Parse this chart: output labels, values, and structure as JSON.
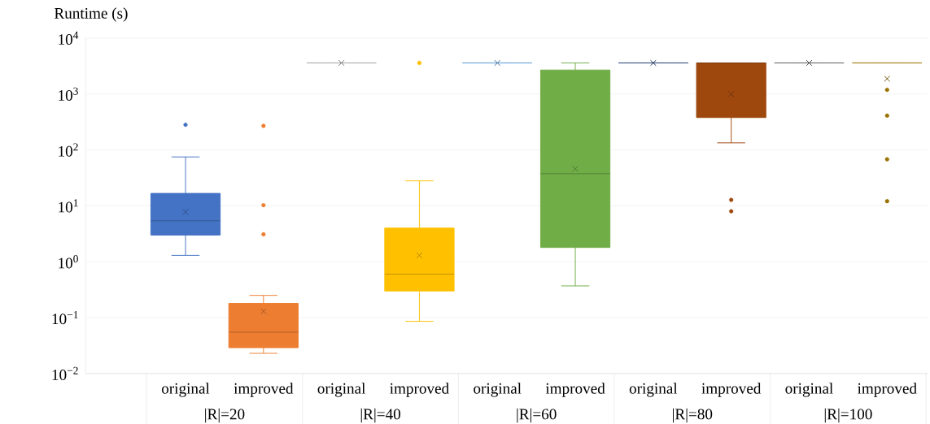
{
  "chart_data": {
    "type": "box",
    "ylabel": "Runtime (s)",
    "categories": [
      "original",
      "improved",
      "original",
      "improved",
      "original",
      "improved",
      "original",
      "improved",
      "original",
      "improved"
    ],
    "boxes": [
      {
        "low": 1.3,
        "q1": 3.0,
        "median": 5.4,
        "q3": 16.7,
        "high": 75,
        "mean": 7.8,
        "outliers": [
          282
        ]
      },
      {
        "low": 0.023,
        "q1": 0.029,
        "median": 0.055,
        "q3": 0.18,
        "high": 0.25,
        "mean": 0.13,
        "outliers": [
          270,
          10.3,
          3.1
        ]
      },
      {
        "low": 3600,
        "q1": 3600,
        "median": 3600,
        "q3": 3600,
        "high": 3600,
        "mean": 3600
      },
      {
        "low": 0.086,
        "q1": 0.3,
        "median": 0.6,
        "q3": 4.0,
        "high": 28,
        "mean": 1.3,
        "outliers": [
          3600
        ]
      },
      {
        "low": 3600,
        "q1": 3600,
        "median": 3600,
        "q3": 3600,
        "high": 3600,
        "mean": 3600
      },
      {
        "low": 0.37,
        "q1": 1.8,
        "median": 37.6,
        "q3": 2690,
        "high": 3600,
        "mean": 46
      },
      {
        "low": 3600,
        "q1": 3600,
        "median": 3600,
        "q3": 3600,
        "high": 3600,
        "mean": 3600
      },
      {
        "low": 134,
        "q1": 380,
        "median": 3600,
        "q3": 3600,
        "high": 3600,
        "mean": 1000,
        "outliers": [
          12.8,
          8.0
        ]
      },
      {
        "low": 3600,
        "q1": 3600,
        "median": 3600,
        "q3": 3600,
        "high": 3600,
        "mean": 3600
      },
      {
        "low": 3600,
        "q1": 3600,
        "median": 3600,
        "q3": 3600,
        "high": 3600,
        "mean": 1880,
        "outliers": [
          1190,
          411,
          68,
          12.1
        ]
      }
    ],
    "colors": [
      "#4472c4",
      "#ed7d31",
      "#a5a5a5",
      "#ffc000",
      "#5b9bd5",
      "#70ad47",
      "#264478",
      "#9e480e",
      "#636363",
      "#997300"
    ],
    "log": "y",
    "ylim": [
      0.01,
      10000
    ],
    "yticks": [
      {
        "value": 0.01,
        "label": "10$^{−2}$"
      },
      {
        "value": 0.1,
        "label": "10$^{−1}$"
      },
      {
        "value": 1,
        "label": "10$^{0}$"
      },
      {
        "value": 10,
        "label": "10$^{1}$"
      },
      {
        "value": 100,
        "label": "10$^{2}$"
      },
      {
        "value": 1000,
        "label": "10$^{3}$"
      },
      {
        "value": 10000,
        "label": "10$^{4}$"
      }
    ],
    "grid": "y",
    "annotations": [
      "|R|=20",
      "|R|=40",
      "|R|=60",
      "|R|=80",
      "|R|=100"
    ]
  }
}
